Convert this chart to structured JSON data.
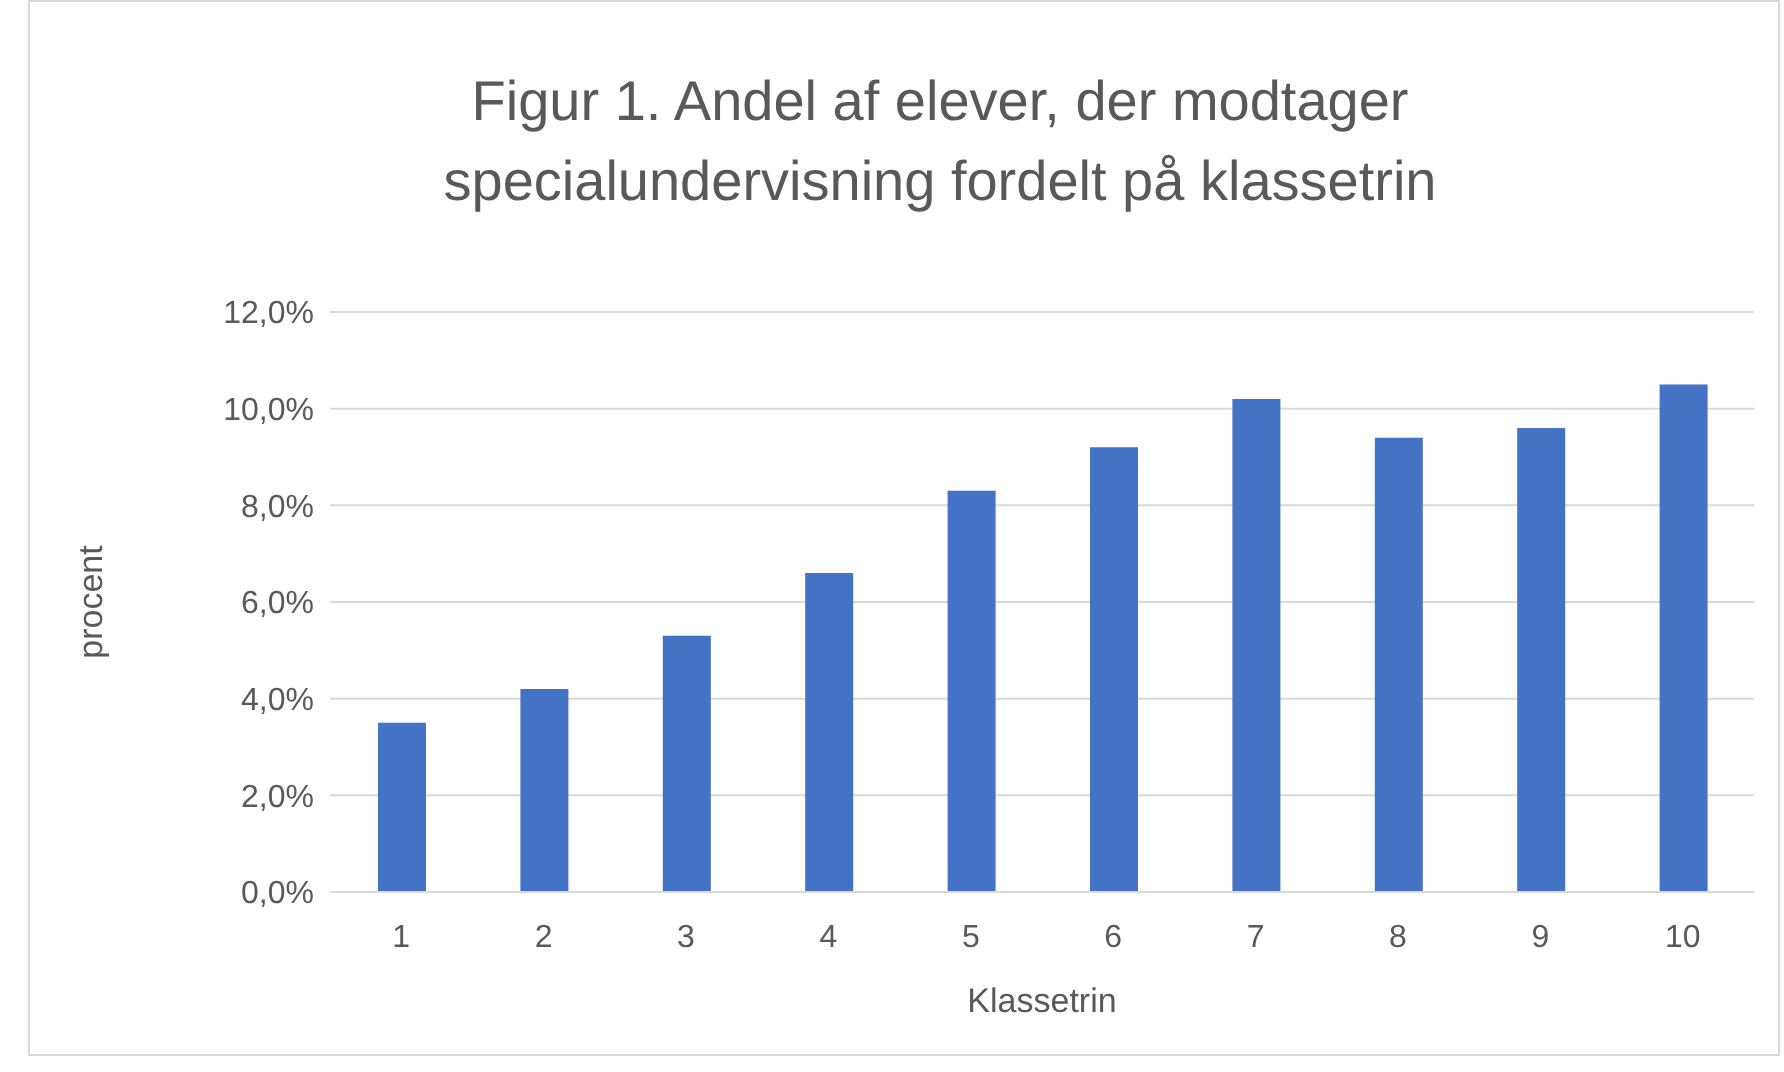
{
  "chart_data": {
    "type": "bar",
    "title": "Figur 1. Andel af elever, der modtager specialundervisning fordelt på klassetrin",
    "xlabel": "Klassetrin",
    "ylabel": "procent",
    "categories": [
      "1",
      "2",
      "3",
      "4",
      "5",
      "6",
      "7",
      "8",
      "9",
      "10"
    ],
    "values": [
      3.5,
      4.2,
      5.3,
      6.6,
      8.3,
      9.2,
      10.2,
      9.4,
      9.6,
      10.5
    ],
    "color": "#4472c4",
    "ylim": [
      0,
      12
    ],
    "yticks": [
      {
        "value": 0,
        "label": "0,0%"
      },
      {
        "value": 2,
        "label": "2,0%"
      },
      {
        "value": 4,
        "label": "4,0%"
      },
      {
        "value": 6,
        "label": "6,0%"
      },
      {
        "value": 8,
        "label": "8,0%"
      },
      {
        "value": 10,
        "label": "10,0%"
      },
      {
        "value": 12,
        "label": "12,0%"
      }
    ],
    "grid": "y",
    "legend": false
  }
}
